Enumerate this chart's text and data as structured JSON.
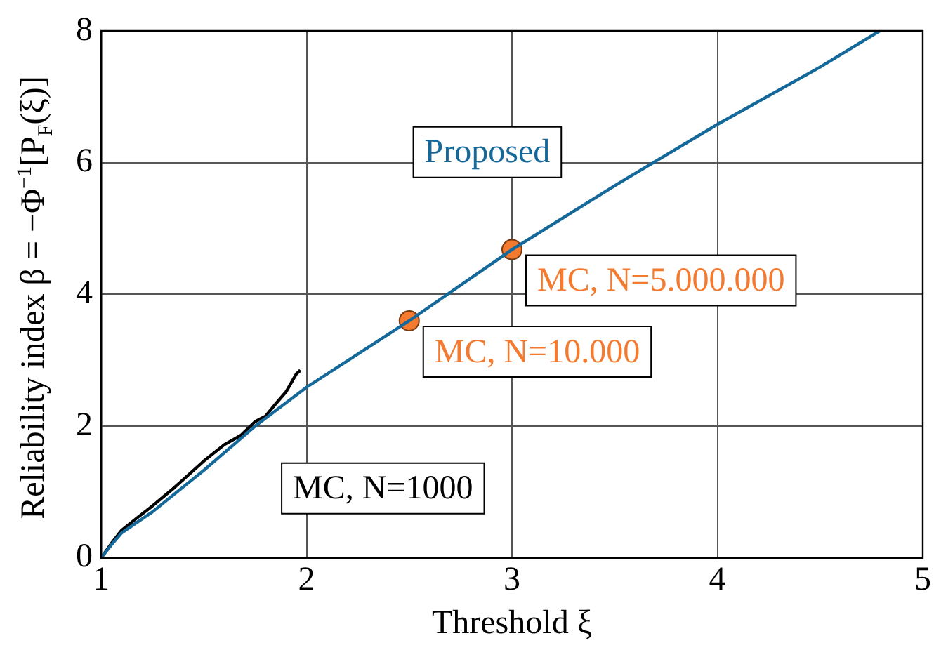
{
  "chart_data": {
    "type": "line",
    "xlabel": "Threshold ξ",
    "ylabel": "Reliability index β = −Φ$^{−1}$[P$_{F}$(ξ)]",
    "xlim": [
      1,
      5
    ],
    "xticks": [
      1,
      2,
      3,
      4,
      5
    ],
    "ylim": [
      0,
      8
    ],
    "yticks": [
      0,
      2,
      4,
      6,
      8
    ],
    "grid": true,
    "legend": false,
    "series": [
      {
        "name": "Proposed",
        "color": "#15699a",
        "marker": "none",
        "x": [
          1,
          1.05,
          1.1,
          1.25,
          1.5,
          1.75,
          2,
          2.5,
          3,
          3.5,
          4,
          4.5,
          4.79
        ],
        "values": [
          0,
          0.2,
          0.38,
          0.7,
          1.33,
          2.0,
          2.59,
          3.6,
          4.68,
          5.65,
          6.58,
          7.45,
          8
        ]
      },
      {
        "name": "MC, N=1000",
        "color": "#000000",
        "marker": "none",
        "x": [
          1,
          1.05,
          1.1,
          1.18,
          1.25,
          1.35,
          1.5,
          1.6,
          1.68,
          1.75,
          1.8,
          1.85,
          1.9,
          1.95,
          1.97
        ],
        "values": [
          0,
          0.22,
          0.42,
          0.62,
          0.79,
          1.05,
          1.47,
          1.72,
          1.86,
          2.07,
          2.15,
          2.34,
          2.52,
          2.79,
          2.85
        ]
      },
      {
        "name": "MC, N=5.000.000",
        "type": "scatter",
        "color": "#f47a30",
        "marker": "circle",
        "x": [
          3
        ],
        "values": [
          4.68
        ]
      },
      {
        "name": "MC, N=10.000",
        "type": "scatter",
        "color": "#f47a30",
        "marker": "circle",
        "x": [
          2.5
        ],
        "values": [
          3.6
        ]
      }
    ]
  }
}
